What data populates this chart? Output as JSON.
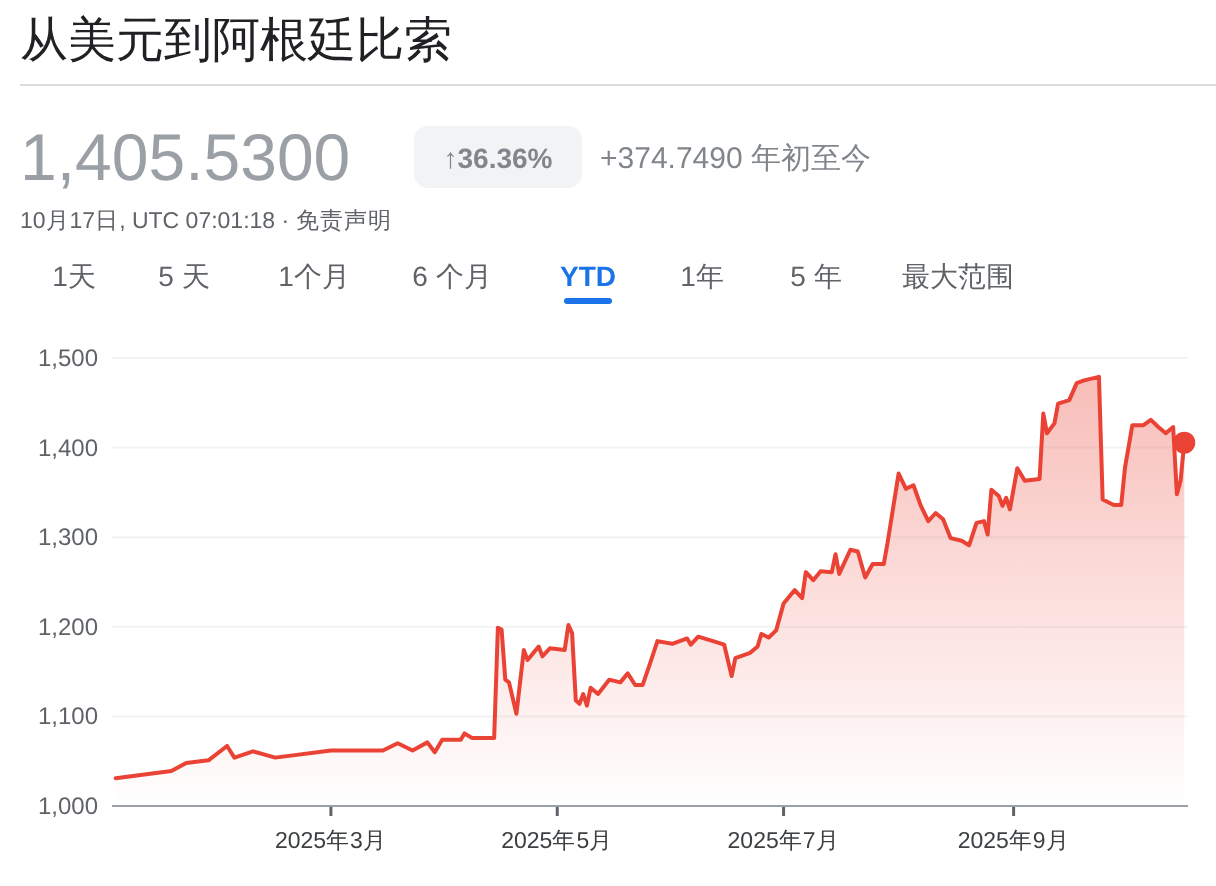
{
  "chart_data": {
    "type": "area",
    "title": "从美元到阿根廷比索",
    "annotations": [
      "1,405.5300",
      "↑36.36%",
      "+374.7490 年初至今",
      "10月17日, UTC 07:01:18 · 免责声明",
      "1天",
      "5 天",
      "1个月",
      "6 个月",
      "YTD",
      "1年",
      "5 年",
      "最大范围"
    ],
    "xlim": [
      "2025-01-01",
      "2025-10-18"
    ],
    "xticks": [
      {
        "value": "2025-03-01",
        "label": "2025年3月"
      },
      {
        "value": "2025-05-01",
        "label": "2025年5月"
      },
      {
        "value": "2025-07-01",
        "label": "2025年7月"
      },
      {
        "value": "2025-09-01",
        "label": "2025年9月"
      }
    ],
    "ylim": [
      1000,
      1500
    ],
    "yticks": [
      {
        "value": 1000,
        "label": "1,000"
      },
      {
        "value": 1100,
        "label": "1,100"
      },
      {
        "value": 1200,
        "label": "1,200"
      },
      {
        "value": 1300,
        "label": "1,300"
      },
      {
        "value": 1400,
        "label": "1,400"
      },
      {
        "value": 1500,
        "label": "1,500"
      }
    ],
    "grid": "y",
    "marker": "none",
    "line_style": "solid",
    "series": [
      {
        "color": "#ea4335",
        "x": [
          "2025-01-02",
          "2025-01-17",
          "2025-01-21",
          "2025-01-27",
          "2025-02-01",
          "2025-02-03",
          "2025-02-08",
          "2025-02-14",
          "2025-03-01",
          "2025-03-15",
          "2025-03-19",
          "2025-03-23",
          "2025-03-27",
          "2025-03-29",
          "2025-03-31",
          "2025-04-05",
          "2025-04-06",
          "2025-04-08",
          "2025-04-14",
          "2025-04-15",
          "2025-04-16",
          "2025-04-17",
          "2025-04-18",
          "2025-04-20",
          "2025-04-22",
          "2025-04-23",
          "2025-04-26",
          "2025-04-27",
          "2025-04-29",
          "2025-05-03",
          "2025-05-04",
          "2025-05-05",
          "2025-05-06",
          "2025-05-07",
          "2025-05-08",
          "2025-05-09",
          "2025-05-10",
          "2025-05-12",
          "2025-05-15",
          "2025-05-18",
          "2025-05-20",
          "2025-05-22",
          "2025-05-24",
          "2025-05-26",
          "2025-05-28",
          "2025-06-01",
          "2025-06-05",
          "2025-06-06",
          "2025-06-08",
          "2025-06-12",
          "2025-06-15",
          "2025-06-17",
          "2025-06-18",
          "2025-06-22",
          "2025-06-24",
          "2025-06-25",
          "2025-06-27",
          "2025-06-29",
          "2025-07-01",
          "2025-07-04",
          "2025-07-06",
          "2025-07-07",
          "2025-07-09",
          "2025-07-11",
          "2025-07-14",
          "2025-07-15",
          "2025-07-16",
          "2025-07-19",
          "2025-07-21",
          "2025-07-23",
          "2025-07-25",
          "2025-07-28",
          "2025-07-29",
          "2025-08-01",
          "2025-08-03",
          "2025-08-05",
          "2025-08-07",
          "2025-08-09",
          "2025-08-11",
          "2025-08-13",
          "2025-08-15",
          "2025-08-18",
          "2025-08-20",
          "2025-08-22",
          "2025-08-24",
          "2025-08-25",
          "2025-08-26",
          "2025-08-28",
          "2025-08-29",
          "2025-08-30",
          "2025-08-31",
          "2025-09-02",
          "2025-09-04",
          "2025-09-08",
          "2025-09-09",
          "2025-09-10",
          "2025-09-12",
          "2025-09-13",
          "2025-09-16",
          "2025-09-18",
          "2025-09-20",
          "2025-09-24",
          "2025-09-25",
          "2025-09-28",
          "2025-09-30",
          "2025-10-01",
          "2025-10-03",
          "2025-10-06",
          "2025-10-08",
          "2025-10-10",
          "2025-10-12",
          "2025-10-14",
          "2025-10-15",
          "2025-10-16",
          "2025-10-17"
        ],
        "values": [
          1031,
          1039,
          1048,
          1051,
          1067,
          1054,
          1061,
          1054,
          1062,
          1062,
          1070,
          1062,
          1071,
          1060,
          1074,
          1074,
          1081,
          1076,
          1076,
          1199,
          1197,
          1141,
          1138,
          1103,
          1174,
          1163,
          1178,
          1167,
          1176,
          1174,
          1202,
          1193,
          1118,
          1114,
          1125,
          1112,
          1132,
          1125,
          1141,
          1138,
          1148,
          1135,
          1135,
          1159,
          1184,
          1181,
          1187,
          1180,
          1189,
          1184,
          1180,
          1145,
          1165,
          1171,
          1178,
          1192,
          1188,
          1196,
          1226,
          1241,
          1232,
          1261,
          1252,
          1262,
          1261,
          1281,
          1259,
          1286,
          1284,
          1255,
          1270,
          1270,
          1293,
          1371,
          1354,
          1358,
          1335,
          1318,
          1327,
          1320,
          1299,
          1296,
          1291,
          1316,
          1318,
          1303,
          1353,
          1346,
          1335,
          1344,
          1331,
          1377,
          1363,
          1365,
          1438,
          1416,
          1427,
          1449,
          1453,
          1472,
          1475,
          1479,
          1342,
          1336,
          1336,
          1377,
          1425,
          1425,
          1431,
          1423,
          1416,
          1423,
          1348,
          1363,
          1406
        ]
      },
      {
        "type": "scatter",
        "color": "#ea4335",
        "marker": "circle",
        "x": [
          "2025-10-17"
        ],
        "values": [
          1405.53
        ]
      }
    ]
  }
}
